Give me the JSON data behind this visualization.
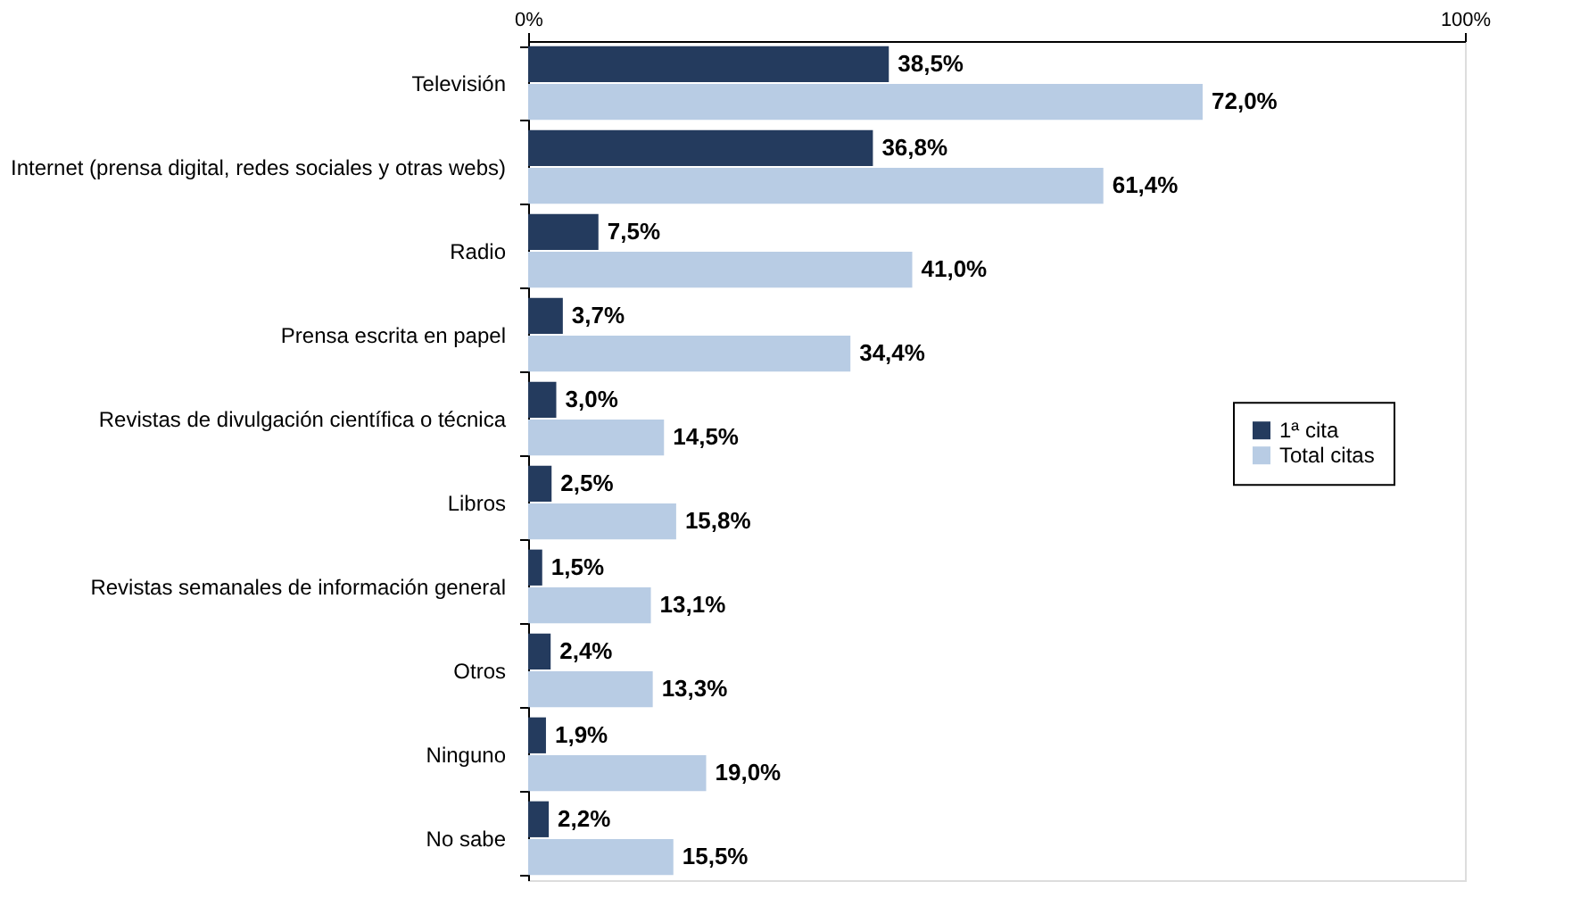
{
  "chart_data": {
    "type": "bar",
    "orientation": "horizontal",
    "categories": [
      "Televisión",
      "Internet (prensa digital, redes sociales y otras webs)",
      "Radio",
      "Prensa escrita en papel",
      "Revistas de divulgación científica o técnica",
      "Libros",
      "Revistas semanales de información general",
      "Otros",
      "Ninguno",
      "No sabe"
    ],
    "series": [
      {
        "name": "1ª cita",
        "color": "#243b5e",
        "values": [
          38.5,
          36.8,
          7.5,
          3.7,
          3.0,
          2.5,
          1.5,
          2.4,
          1.9,
          2.2
        ],
        "value_labels": [
          "38,5%",
          "36,8%",
          "7,5%",
          "3,7%",
          "3,0%",
          "2,5%",
          "1,5%",
          "2,4%",
          "1,9%",
          "2,2%"
        ]
      },
      {
        "name": "Total citas",
        "color": "#b8cce4",
        "values": [
          72.0,
          61.4,
          41.0,
          34.4,
          14.5,
          15.8,
          13.1,
          13.3,
          19.0,
          15.5
        ],
        "value_labels": [
          "72,0%",
          "61,4%",
          "41,0%",
          "34,4%",
          "14,5%",
          "15,8%",
          "13,1%",
          "13,3%",
          "19,0%",
          "15,5%"
        ]
      }
    ],
    "xlim": [
      0,
      100
    ],
    "xticks": [
      {
        "value": 0,
        "label": "0%"
      },
      {
        "value": 100,
        "label": "100%"
      }
    ],
    "legend": "right"
  }
}
